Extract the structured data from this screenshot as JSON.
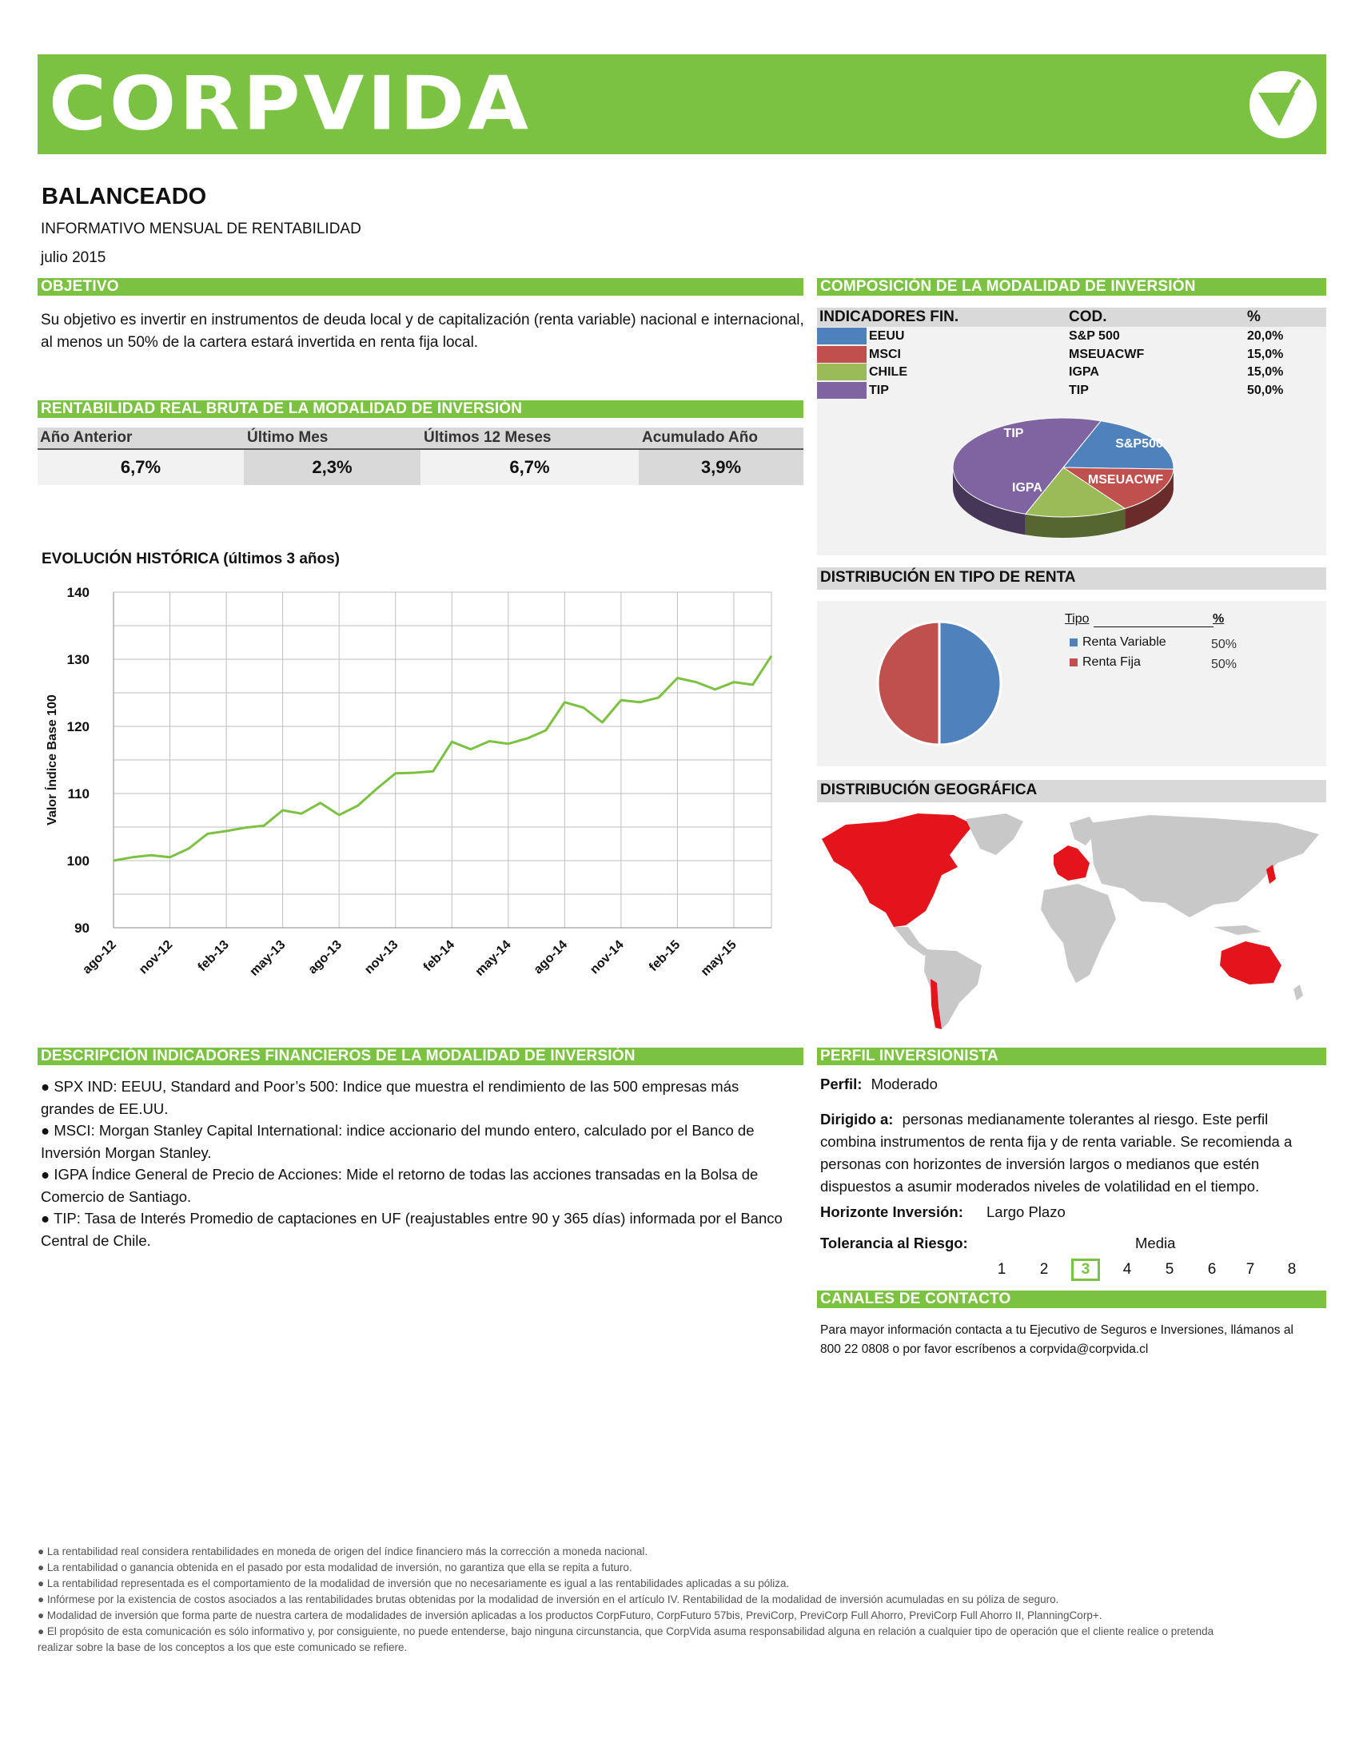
{
  "header": {
    "brand": "CORPVIDA",
    "accent_color": "#7cc242",
    "logo_icon": "check-circle-icon"
  },
  "doc": {
    "title": "BALANCEADO",
    "subtitle": "INFORMATIVO MENSUAL DE RENTABILIDAD",
    "date": "julio 2015"
  },
  "objetivo": {
    "heading": "OBJETIVO",
    "text_line1": "Su objetivo es invertir en instrumentos de deuda local y de capitalización (renta variable) nacional e internacional,",
    "text_line2": "al menos un 50% de la cartera estará invertida en renta fija local."
  },
  "rentabilidad": {
    "heading": "RENTABILIDAD REAL BRUTA DE LA MODALIDAD DE INVERSIÓN",
    "columns": [
      {
        "label": "Año Anterior",
        "value": "6,7%"
      },
      {
        "label": "Último Mes",
        "value": "2,3%"
      },
      {
        "label": "Últimos 12 Meses",
        "value": "6,7%"
      },
      {
        "label": "Acumulado Año",
        "value": "3,9%"
      }
    ]
  },
  "composicion": {
    "heading": "COMPOSICIÓN DE LA MODALIDAD DE INVERSIÓN",
    "col_indicador": "INDICADORES FIN.",
    "col_cod": "COD.",
    "col_pct": "%",
    "rows": [
      {
        "name": "EEUU",
        "cod": "S&P 500",
        "pct": "20,0%",
        "color": "#4f81bd"
      },
      {
        "name": "MSCI",
        "cod": "MSEUACWF",
        "pct": "15,0%",
        "color": "#c0504d"
      },
      {
        "name": "CHILE",
        "cod": "IGPA",
        "pct": "15,0%",
        "color": "#9bbb59"
      },
      {
        "name": "TIP",
        "cod": "TIP",
        "pct": "50,0%",
        "color": "#8064a2"
      }
    ],
    "pie_labels": {
      "tip": "TIP",
      "sp": "S&P500",
      "msci": "MSEUACWF",
      "igpa": "IGPA"
    }
  },
  "chart_data": {
    "type": "line",
    "title": "EVOLUCIÓN HISTÓRICA (últimos 3 años)",
    "ylabel": "Valor Índice Base 100",
    "xlabel": "",
    "ylim": [
      90,
      140
    ],
    "yticks": [
      90,
      100,
      110,
      120,
      130,
      140
    ],
    "tick_labels": [
      "ago-12",
      "nov-12",
      "feb-13",
      "may-13",
      "ago-13",
      "nov-13",
      "feb-14",
      "may-14",
      "ago-14",
      "nov-14",
      "feb-15",
      "may-15"
    ],
    "x": [
      "ago-12",
      "sep-12",
      "oct-12",
      "nov-12",
      "dic-12",
      "ene-13",
      "feb-13",
      "mar-13",
      "abr-13",
      "may-13",
      "jun-13",
      "jul-13",
      "ago-13",
      "sep-13",
      "oct-13",
      "nov-13",
      "dic-13",
      "ene-14",
      "feb-14",
      "mar-14",
      "abr-14",
      "may-14",
      "jun-14",
      "jul-14",
      "ago-14",
      "sep-14",
      "oct-14",
      "nov-14",
      "dic-14",
      "ene-15",
      "feb-15",
      "mar-15",
      "abr-15",
      "may-15",
      "jun-15",
      "jul-15"
    ],
    "values": [
      100.0,
      100.5,
      100.8,
      100.5,
      101.8,
      104.0,
      104.4,
      104.9,
      105.2,
      107.5,
      107.0,
      108.6,
      106.8,
      108.2,
      110.7,
      113.0,
      113.1,
      113.3,
      117.7,
      116.6,
      117.8,
      117.4,
      118.2,
      119.4,
      123.6,
      122.8,
      120.6,
      123.9,
      123.6,
      124.3,
      127.2,
      126.6,
      125.5,
      126.6,
      126.2,
      130.5
    ],
    "series_color": "#7cc242",
    "grid": true
  },
  "distribucion_renta": {
    "heading": "DISTRIBUCIÓN EN TIPO DE RENTA",
    "col_tipo": "Tipo",
    "col_pct": "%",
    "rows": [
      {
        "name": "Renta Variable",
        "pct": "50%",
        "color": "#4f81bd",
        "value": 50
      },
      {
        "name": "Renta Fija",
        "pct": "50%",
        "color": "#c0504d",
        "value": 50
      }
    ]
  },
  "geografica": {
    "heading": "DISTRIBUCIÓN GEOGRÁFICA",
    "highlight_color": "#e3141b",
    "base_color": "#c8c8c8"
  },
  "descripcion": {
    "heading": "DESCRIPCIÓN INDICADORES FINANCIEROS DE LA MODALIDAD DE INVERSIÓN",
    "items": [
      {
        "l1": "● SPX IND: EEUU, Standard and Poor’s 500: Indice que muestra el rendimiento de las 500 empresas más",
        "l2": "grandes de EE.UU."
      },
      {
        "l1": "● MSCI: Morgan Stanley Capital International: indice accionario del mundo entero, calculado por el Banco de",
        "l2": "Inversión Morgan Stanley."
      },
      {
        "l1": "● IGPA Índice General de Precio de Acciones: Mide el retorno de todas las acciones transadas en la Bolsa de",
        "l2": "Comercio de Santiago."
      },
      {
        "l1": "● TIP: Tasa de Interés Promedio de captaciones en UF (reajustables entre 90 y 365 días) informada por el Banco",
        "l2": "Central de Chile."
      }
    ]
  },
  "perfil": {
    "heading": "PERFIL INVERSIONISTA",
    "perfil_label": "Perfil:",
    "perfil_value": "Moderado",
    "dirigido_label": "Dirigido a:",
    "dirigido_l1": "personas medianamente tolerantes al riesgo. Este perfil",
    "dirigido_l2": "combina instrumentos de renta fija y de renta variable. Se recomienda a",
    "dirigido_l3": "personas con horizontes de inversión largos o medianos que estén",
    "dirigido_l4": "dispuestos a asumir moderados niveles de volatilidad en el tiempo.",
    "horizonte_label": "Horizonte Inversión:",
    "horizonte_value": "Largo Plazo",
    "tolerancia_label": "Tolerancia al Riesgo:",
    "tolerancia_value": "Media",
    "scale": [
      "1",
      "2",
      "3",
      "4",
      "5",
      "6",
      "7",
      "8"
    ],
    "selected": 3
  },
  "contacto": {
    "heading": "CANALES DE CONTACTO",
    "l1": "Para mayor información contacta a tu Ejecutivo de Seguros e Inversiones, llámanos al",
    "l2": "800 22 0808 o por favor escríbenos a corpvida@corpvida.cl"
  },
  "footer": {
    "notes": [
      "● La rentabilidad real considera rentabilidades en moneda de origen del índice financiero más la corrección a moneda nacional.",
      "● La rentabilidad o ganancia obtenida en el pasado por esta modalidad de inversión, no garantiza que ella se repita a futuro.",
      "● La rentabilidad representada es el comportamiento de la modalidad de inversión que no necesariamente es igual a las rentabilidades aplicadas a su póliza.",
      "● Infórmese por la existencia de costos asociados a las rentabilidades brutas obtenidas por la modalidad de inversión en el artículo IV. Rentabilidad de la modalidad de inversión acumuladas en su póliza de seguro.",
      "● Modalidad de inversión que forma parte de nuestra cartera de modalidades de inversión aplicadas a los productos CorpFuturo, CorpFuturo 57bis, PreviCorp, PreviCorp Full Ahorro, PreviCorp Full Ahorro II, PlanningCorp+."
    ],
    "last_l1": "● El propósito de esta comunicación es sólo informativo y, por consiguiente, no puede entenderse, bajo ninguna circunstancia, que CorpVida asuma responsabilidad alguna en relación a cualquier tipo de operación que el cliente realice o pretenda",
    "last_l2": "realizar sobre la base de los conceptos a los que este comunicado se refiere."
  }
}
